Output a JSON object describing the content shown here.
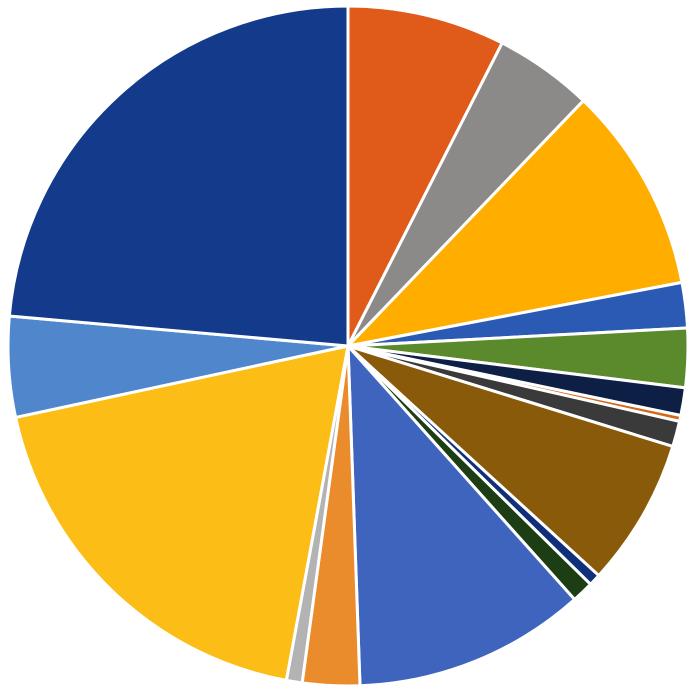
{
  "chart_data": {
    "type": "pie",
    "title": "",
    "start_angle_deg": 0,
    "direction": "clockwise",
    "legend": "none",
    "data_labels": "none",
    "slices": [
      {
        "value": 8.0,
        "color": "#e05a1a"
      },
      {
        "value": 5.0,
        "color": "#8c8a89"
      },
      {
        "value": 10.5,
        "color": "#ffae00"
      },
      {
        "value": 2.3,
        "color": "#2a5ab3"
      },
      {
        "value": 3.0,
        "color": "#5b8a2c"
      },
      {
        "value": 1.4,
        "color": "#0d1f44"
      },
      {
        "value": 0.3,
        "color": "#d4691e"
      },
      {
        "value": 1.3,
        "color": "#3a3a3a"
      },
      {
        "value": 7.5,
        "color": "#8a5a0b"
      },
      {
        "value": 0.6,
        "color": "#10307a"
      },
      {
        "value": 1.1,
        "color": "#1d3d14"
      },
      {
        "value": 11.8,
        "color": "#3f64be"
      },
      {
        "value": 2.9,
        "color": "#ea8b2c"
      },
      {
        "value": 0.8,
        "color": "#b3b3b3"
      },
      {
        "value": 20.0,
        "color": "#fbbd16"
      },
      {
        "value": 5.1,
        "color": "#4f86cc"
      },
      {
        "value": 25.2,
        "color": "#143a8c"
      }
    ]
  }
}
